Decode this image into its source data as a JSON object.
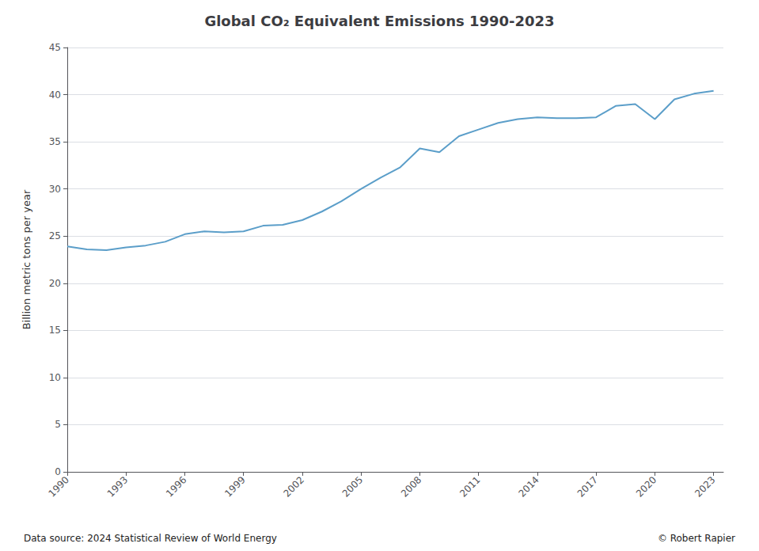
{
  "chart_data": {
    "type": "line",
    "title": "Global CO₂ Equivalent Emissions 1990-2023",
    "ylabel": "Billion metric tons per year",
    "annotations": [
      "Data source: 2024 Statistical Review of World Energy",
      "© Robert Rapier"
    ],
    "color": "#5b9ec9",
    "x": [
      1990,
      1991,
      1992,
      1993,
      1994,
      1995,
      1996,
      1997,
      1998,
      1999,
      2000,
      2001,
      2002,
      2003,
      2004,
      2005,
      2006,
      2007,
      2008,
      2009,
      2010,
      2011,
      2012,
      2013,
      2014,
      2015,
      2016,
      2017,
      2018,
      2019,
      2020,
      2021,
      2022,
      2023
    ],
    "values": [
      23.9,
      23.6,
      23.5,
      23.8,
      24.0,
      24.4,
      25.2,
      25.5,
      25.4,
      25.5,
      26.1,
      26.2,
      26.7,
      27.6,
      28.7,
      30.0,
      31.2,
      32.3,
      34.3,
      33.9,
      35.6,
      36.3,
      37.0,
      37.4,
      37.6,
      37.5,
      37.5,
      37.6,
      38.8,
      39.0,
      37.4,
      39.5,
      40.1,
      40.4
    ],
    "xlim": [
      1990,
      2023.5
    ],
    "xticks": [
      1990,
      1993,
      1996,
      1999,
      2002,
      2005,
      2008,
      2011,
      2014,
      2017,
      2020,
      2023
    ],
    "ylim": [
      0,
      45
    ],
    "yticks": [
      0,
      5,
      10,
      15,
      20,
      25,
      30,
      35,
      40,
      45
    ],
    "grid": true
  }
}
